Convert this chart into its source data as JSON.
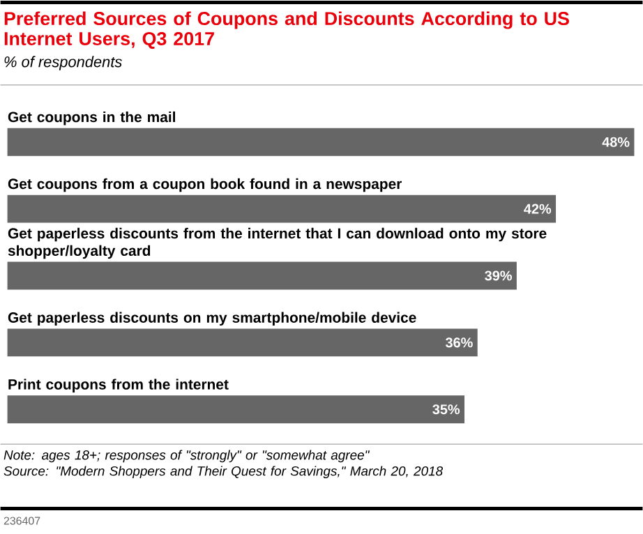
{
  "chart_data": {
    "type": "bar",
    "orientation": "horizontal",
    "title": "Preferred Sources of Coupons and Discounts According to US Internet Users, Q3 2017",
    "subtitle": "% of respondents",
    "categories": [
      "Get coupons in the mail",
      "Get coupons from a coupon book found in a newspaper",
      "Get paperless discounts from the internet that I can download onto my store shopper/loyalty card",
      "Get paperless discounts on my smartphone/mobile device",
      "Print coupons from the internet"
    ],
    "values": [
      48,
      42,
      39,
      36,
      35
    ],
    "value_labels": [
      "48%",
      "42%",
      "39%",
      "36%",
      "35%"
    ],
    "color": "#666666",
    "annotations": [
      "Note: ages 18+; responses of \"strongly\" or \"somewhat agree\"",
      "Source: \"Modern Shoppers and Their Quest for Savings,\" March 20, 2018",
      "236407"
    ]
  }
}
